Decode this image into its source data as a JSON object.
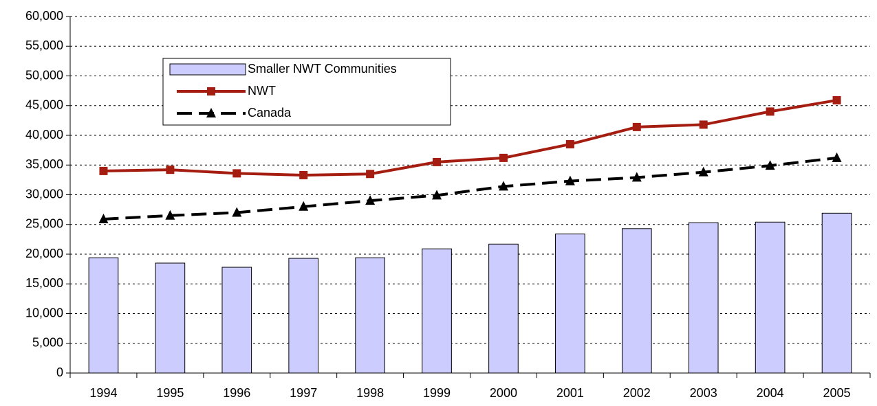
{
  "chart_data": {
    "type": "bar-line",
    "categories": [
      "1994",
      "1995",
      "1996",
      "1997",
      "1998",
      "1999",
      "2000",
      "2001",
      "2002",
      "2003",
      "2004",
      "2005"
    ],
    "series": [
      {
        "name": "Smaller NWT Communities",
        "type": "bar",
        "color": "#ccccff",
        "values": [
          19400,
          18500,
          17800,
          19300,
          19400,
          20900,
          21700,
          23400,
          24300,
          25300,
          25400,
          26900
        ]
      },
      {
        "name": "NWT",
        "type": "line",
        "marker": "square",
        "dashed": false,
        "color": "#a51d10",
        "values": [
          34000,
          34200,
          33600,
          33300,
          33500,
          35500,
          36200,
          38500,
          41400,
          41800,
          44000,
          45900
        ]
      },
      {
        "name": "Canada",
        "type": "line",
        "marker": "triangle",
        "dashed": true,
        "color": "#000000",
        "values": [
          25900,
          26500,
          27000,
          28000,
          29000,
          29900,
          31400,
          32300,
          32900,
          33800,
          34900,
          36200
        ]
      }
    ],
    "ylim": [
      0,
      60000
    ],
    "yticks": [
      0,
      {
        "value": 5000,
        "label": "5,000"
      },
      {
        "value": 10000,
        "label": "10,000"
      },
      {
        "value": 15000,
        "label": "15,000"
      },
      {
        "value": 20000,
        "label": "20,000"
      },
      {
        "value": 25000,
        "label": "25,000"
      },
      {
        "value": 30000,
        "label": "30,000"
      },
      {
        "value": 35000,
        "label": "35,000"
      },
      {
        "value": 40000,
        "label": "40,000"
      },
      {
        "value": 45000,
        "label": "45,000"
      },
      {
        "value": 50000,
        "label": "50,000"
      },
      {
        "value": 55000,
        "label": "55,000"
      },
      {
        "value": 60000,
        "label": "60,000"
      }
    ],
    "grid": true,
    "legend": "upper-left"
  }
}
